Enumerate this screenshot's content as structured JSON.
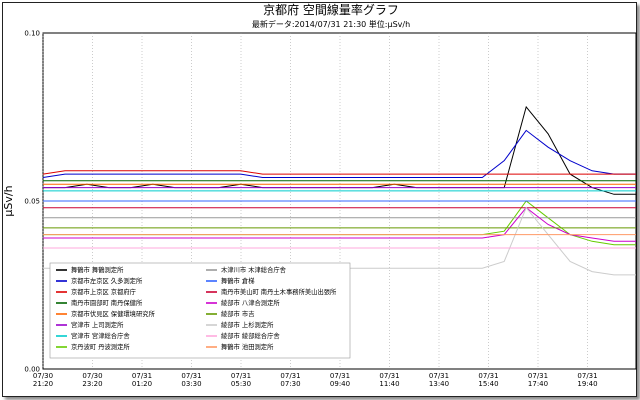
{
  "chart_data": {
    "type": "line",
    "title": "京都府 空間線量率グラフ",
    "subtitle": "最新データ:2014/07/31 21:30 単位:μSv/h",
    "ylabel": "μSv/h",
    "ylim": [
      0,
      0.1
    ],
    "yticks": [
      "0.00",
      "0.05",
      "0.10"
    ],
    "grid": true,
    "legend_position": "bottom-left, inside plot",
    "x_labels": [
      [
        "07/30",
        "21:20"
      ],
      [
        "07/30",
        "23:20"
      ],
      [
        "07/31",
        "01:20"
      ],
      [
        "07/31",
        "03:30"
      ],
      [
        "07/31",
        "05:30"
      ],
      [
        "07/31",
        "07:30"
      ],
      [
        "07/31",
        "09:40"
      ],
      [
        "07/31",
        "11:40"
      ],
      [
        "07/31",
        "13:40"
      ],
      [
        "07/31",
        "15:40"
      ],
      [
        "07/31",
        "17:40"
      ],
      [
        "07/31",
        "19:40"
      ]
    ],
    "series": [
      {
        "name": "舞鶴市 舞鶴測定所",
        "color": "#000000",
        "values": [
          0.054,
          0.054,
          0.055,
          0.054,
          0.054,
          0.055,
          0.054,
          0.054,
          0.054,
          0.055,
          0.054,
          0.054,
          0.054,
          0.054,
          0.054,
          0.054,
          0.055,
          0.054,
          0.054,
          0.054,
          0.054,
          0.054,
          0.078,
          0.07,
          0.058,
          0.054,
          0.052,
          0.052
        ]
      },
      {
        "name": "京都市左京区 久多測定所",
        "color": "#0000cc",
        "values": [
          0.057,
          0.058,
          0.058,
          0.058,
          0.058,
          0.058,
          0.058,
          0.058,
          0.058,
          0.058,
          0.057,
          0.057,
          0.057,
          0.057,
          0.057,
          0.057,
          0.057,
          0.057,
          0.057,
          0.057,
          0.057,
          0.062,
          0.071,
          0.066,
          0.062,
          0.059,
          0.058,
          0.058
        ]
      },
      {
        "name": "京都市上京区 京都府庁",
        "color": "#dd0000",
        "values": [
          0.058,
          0.059,
          0.059,
          0.059,
          0.059,
          0.059,
          0.059,
          0.059,
          0.059,
          0.059,
          0.058,
          0.058,
          0.058,
          0.058,
          0.058,
          0.058,
          0.058,
          0.058,
          0.058,
          0.058,
          0.058,
          0.058,
          0.058,
          0.058,
          0.058,
          0.058,
          0.058,
          0.058
        ]
      },
      {
        "name": "南丹市園部町 南丹保健所",
        "color": "#006600",
        "values": [
          0.056,
          0.056,
          0.056,
          0.056,
          0.056,
          0.056,
          0.056,
          0.056,
          0.056,
          0.056,
          0.056,
          0.056,
          0.056,
          0.056,
          0.056,
          0.056,
          0.056,
          0.056,
          0.056,
          0.056,
          0.056,
          0.056,
          0.056,
          0.056,
          0.056,
          0.056,
          0.056,
          0.056
        ]
      },
      {
        "name": "京都市伏見区 保健環境研究所",
        "color": "#ff6600",
        "values": [
          0.055,
          0.055,
          0.055,
          0.055,
          0.055,
          0.055,
          0.055,
          0.055,
          0.055,
          0.055,
          0.055,
          0.055,
          0.055,
          0.055,
          0.055,
          0.055,
          0.055,
          0.055,
          0.055,
          0.055,
          0.055,
          0.055,
          0.055,
          0.055,
          0.055,
          0.055,
          0.055,
          0.055
        ]
      },
      {
        "name": "宮津市 上司測定所",
        "color": "#9900cc",
        "values": [
          0.054,
          0.054,
          0.054,
          0.054,
          0.054,
          0.054,
          0.054,
          0.054,
          0.054,
          0.054,
          0.054,
          0.054,
          0.054,
          0.054,
          0.054,
          0.054,
          0.054,
          0.054,
          0.054,
          0.054,
          0.054,
          0.054,
          0.054,
          0.054,
          0.054,
          0.054,
          0.054,
          0.054
        ]
      },
      {
        "name": "宮津市 宮津総合庁舎",
        "color": "#00cccc",
        "values": [
          0.053,
          0.053,
          0.053,
          0.053,
          0.053,
          0.053,
          0.053,
          0.053,
          0.053,
          0.053,
          0.053,
          0.053,
          0.053,
          0.053,
          0.053,
          0.053,
          0.053,
          0.053,
          0.053,
          0.053,
          0.053,
          0.053,
          0.053,
          0.053,
          0.053,
          0.053,
          0.053,
          0.053
        ]
      },
      {
        "name": "京丹波町 丹波測定所",
        "color": "#66cc00",
        "values": [
          0.04,
          0.04,
          0.04,
          0.04,
          0.04,
          0.04,
          0.04,
          0.04,
          0.04,
          0.04,
          0.04,
          0.04,
          0.04,
          0.04,
          0.04,
          0.04,
          0.04,
          0.04,
          0.04,
          0.04,
          0.04,
          0.041,
          0.05,
          0.045,
          0.04,
          0.038,
          0.037,
          0.037
        ]
      },
      {
        "name": "木津川市 木津総合庁舎",
        "color": "#999999",
        "values": [
          0.045,
          0.045,
          0.045,
          0.045,
          0.045,
          0.045,
          0.045,
          0.045,
          0.045,
          0.045,
          0.045,
          0.045,
          0.045,
          0.045,
          0.045,
          0.045,
          0.045,
          0.045,
          0.045,
          0.045,
          0.045,
          0.045,
          0.045,
          0.045,
          0.045,
          0.045,
          0.045,
          0.045
        ]
      },
      {
        "name": "舞鶴市 倉梯",
        "color": "#3366ff",
        "values": [
          0.05,
          0.05,
          0.05,
          0.05,
          0.05,
          0.05,
          0.05,
          0.05,
          0.05,
          0.05,
          0.05,
          0.05,
          0.05,
          0.05,
          0.05,
          0.05,
          0.05,
          0.05,
          0.05,
          0.05,
          0.05,
          0.05,
          0.05,
          0.05,
          0.05,
          0.05,
          0.05,
          0.05
        ]
      },
      {
        "name": "南丹市美山町 南丹土木事務所美山出張所",
        "color": "#cc0033",
        "values": [
          0.048,
          0.048,
          0.048,
          0.048,
          0.048,
          0.048,
          0.048,
          0.048,
          0.048,
          0.048,
          0.048,
          0.048,
          0.048,
          0.048,
          0.048,
          0.048,
          0.048,
          0.048,
          0.048,
          0.048,
          0.048,
          0.048,
          0.048,
          0.048,
          0.048,
          0.048,
          0.048,
          0.048
        ]
      },
      {
        "name": "綾部市 八津合測定所",
        "color": "#cc00cc",
        "values": [
          0.039,
          0.039,
          0.039,
          0.039,
          0.039,
          0.039,
          0.039,
          0.039,
          0.039,
          0.039,
          0.039,
          0.039,
          0.039,
          0.039,
          0.039,
          0.039,
          0.039,
          0.039,
          0.039,
          0.039,
          0.039,
          0.04,
          0.048,
          0.043,
          0.04,
          0.039,
          0.038,
          0.038
        ]
      },
      {
        "name": "綾部市 市吉",
        "color": "#669900",
        "values": [
          0.042,
          0.042,
          0.042,
          0.042,
          0.042,
          0.042,
          0.042,
          0.042,
          0.042,
          0.042,
          0.042,
          0.042,
          0.042,
          0.042,
          0.042,
          0.042,
          0.042,
          0.042,
          0.042,
          0.042,
          0.042,
          0.042,
          0.042,
          0.042,
          0.042,
          0.042,
          0.042,
          0.042
        ]
      },
      {
        "name": "綾部市 上杉測定所",
        "color": "#cccccc",
        "values": [
          0.03,
          0.03,
          0.03,
          0.03,
          0.03,
          0.03,
          0.03,
          0.03,
          0.03,
          0.03,
          0.03,
          0.03,
          0.03,
          0.03,
          0.03,
          0.03,
          0.03,
          0.03,
          0.03,
          0.03,
          0.03,
          0.032,
          0.048,
          0.04,
          0.032,
          0.029,
          0.028,
          0.028
        ]
      },
      {
        "name": "綾部市 綾部総合庁舎",
        "color": "#ffaadd",
        "values": [
          0.036,
          0.036,
          0.036,
          0.036,
          0.036,
          0.036,
          0.036,
          0.036,
          0.036,
          0.036,
          0.036,
          0.036,
          0.036,
          0.036,
          0.036,
          0.036,
          0.036,
          0.036,
          0.036,
          0.036,
          0.036,
          0.036,
          0.036,
          0.036,
          0.036,
          0.036,
          0.036,
          0.036
        ]
      },
      {
        "name": "舞鶴市 池田測定所",
        "color": "#ff9966",
        "values": [
          0.04,
          0.04,
          0.04,
          0.04,
          0.04,
          0.04,
          0.04,
          0.04,
          0.04,
          0.04,
          0.04,
          0.04,
          0.04,
          0.04,
          0.04,
          0.04,
          0.04,
          0.04,
          0.04,
          0.04,
          0.04,
          0.04,
          0.04,
          0.04,
          0.04,
          0.04,
          0.04,
          0.04
        ]
      }
    ]
  }
}
